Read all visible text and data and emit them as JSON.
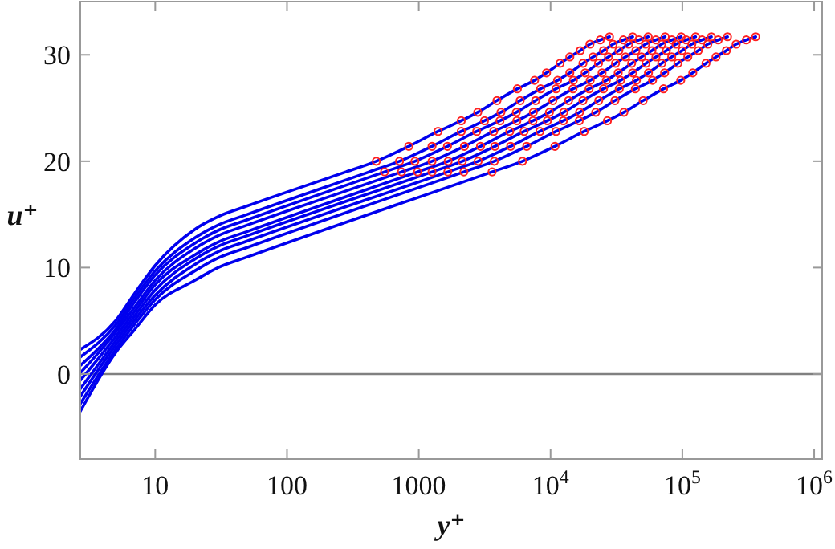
{
  "chart_data": {
    "type": "line",
    "xlabel": "y⁺",
    "ylabel": "u⁺",
    "log": "x",
    "xlim": [
      2.7,
      1150000
    ],
    "ylim": [
      -8,
      35
    ],
    "xticks": [
      10,
      100,
      1000,
      {
        "value": 10000,
        "label": "10$^{4}$"
      },
      {
        "value": 100000,
        "label": "10$^{5}$"
      },
      {
        "value": 1000000,
        "label": "10$^{6}$"
      }
    ],
    "yticks": [
      0,
      10,
      20,
      30
    ],
    "grid": false,
    "ref_lines": [
      {
        "axis": "y",
        "value": 0,
        "color": "#808080"
      }
    ],
    "series": [
      {
        "color": "#0000ee",
        "x": [
          2.7,
          5,
          7,
          10,
          20,
          30,
          50,
          280,
          476,
          840,
          1400,
          2100,
          2800,
          3920,
          5600,
          7560,
          9320,
          11800,
          14000,
          16800,
          19900,
          23800,
          28000
        ],
        "values": [
          2.3,
          5.0,
          7.6,
          10.2,
          13.6,
          14.8,
          15.8,
          19.0,
          20.0,
          21.4,
          22.8,
          23.8,
          24.6,
          25.7,
          26.8,
          27.6,
          28.3,
          29.2,
          29.8,
          30.4,
          31.0,
          31.4,
          31.7
        ]
      },
      {
        "color": "#0000ee",
        "x": [
          2.7,
          5,
          7,
          10,
          20,
          30,
          50,
          420,
          714,
          1260,
          2100,
          3150,
          4200,
          5880,
          8400,
          11300,
          14000,
          17600,
          21000,
          25200,
          29800,
          35700,
          42000
        ],
        "values": [
          1.6,
          4.6,
          7.2,
          9.7,
          12.8,
          14.0,
          15.0,
          19.0,
          20.0,
          21.4,
          22.8,
          23.8,
          24.6,
          25.7,
          26.8,
          27.6,
          28.3,
          29.2,
          29.8,
          30.4,
          31.0,
          31.4,
          31.7
        ]
      },
      {
        "color": "#0000ee",
        "x": [
          2.7,
          5,
          7,
          10,
          20,
          30,
          50,
          550,
          935,
          1650,
          2750,
          4130,
          5500,
          7700,
          11000,
          14900,
          18300,
          23100,
          27500,
          33000,
          39100,
          46800,
          55000
        ],
        "values": [
          0.8,
          4.2,
          6.8,
          9.3,
          12.3,
          13.5,
          14.5,
          19.0,
          20.0,
          21.4,
          22.8,
          23.8,
          24.6,
          25.7,
          26.8,
          27.6,
          28.3,
          29.2,
          29.8,
          30.4,
          31.0,
          31.4,
          31.7
        ]
      },
      {
        "color": "#0000ee",
        "x": [
          2.7,
          5,
          7,
          10,
          20,
          30,
          50,
          740,
          1260,
          2220,
          3700,
          5550,
          7400,
          10400,
          14800,
          20000,
          24600,
          31100,
          37000,
          44400,
          52500,
          62900,
          74000
        ],
        "values": [
          0.1,
          3.9,
          6.3,
          8.8,
          11.8,
          13.0,
          14.0,
          19.0,
          20.0,
          21.4,
          22.8,
          23.8,
          24.6,
          25.7,
          26.8,
          27.6,
          28.3,
          29.2,
          29.8,
          30.4,
          31.0,
          31.4,
          31.7
        ]
      },
      {
        "color": "#0000ee",
        "x": [
          2.7,
          5,
          7,
          10,
          20,
          30,
          50,
          980,
          1670,
          2940,
          4900,
          7350,
          9800,
          13700,
          19600,
          26500,
          32600,
          41200,
          49000,
          58800,
          69600,
          83300,
          98000
        ],
        "values": [
          -0.6,
          3.5,
          5.9,
          8.4,
          11.2,
          12.4,
          13.4,
          19.0,
          20.0,
          21.4,
          22.8,
          23.8,
          24.6,
          25.7,
          26.8,
          27.6,
          28.3,
          29.2,
          29.8,
          30.4,
          31.0,
          31.4,
          31.7
        ]
      },
      {
        "color": "#0000ee",
        "x": [
          2.7,
          5,
          7,
          10,
          20,
          30,
          50,
          1260,
          2140,
          3780,
          6300,
          9450,
          12600,
          17600,
          25200,
          34000,
          42000,
          52900,
          63000,
          75600,
          89500,
          107000,
          126000
        ],
        "values": [
          -1.4,
          3.1,
          5.5,
          7.9,
          10.8,
          12.0,
          13.0,
          19.0,
          20.0,
          21.4,
          22.8,
          23.8,
          24.6,
          25.7,
          26.8,
          27.6,
          28.3,
          29.2,
          29.8,
          30.4,
          31.0,
          31.4,
          31.7
        ]
      },
      {
        "color": "#0000ee",
        "x": [
          2.7,
          5,
          7,
          10,
          20,
          30,
          50,
          1660,
          2820,
          4980,
          8300,
          12500,
          16600,
          23200,
          33200,
          44800,
          55300,
          69700,
          83000,
          99600,
          118000,
          141000,
          166000
        ],
        "values": [
          -2.1,
          2.7,
          5.1,
          7.4,
          10.3,
          11.5,
          12.5,
          19.0,
          20.0,
          21.4,
          22.8,
          23.8,
          24.6,
          25.7,
          26.8,
          27.6,
          28.3,
          29.2,
          29.8,
          30.4,
          31.0,
          31.4,
          31.7
        ]
      },
      {
        "color": "#0000ee",
        "x": [
          2.7,
          5,
          7,
          10,
          20,
          30,
          50,
          2200,
          3740,
          6600,
          11000,
          16500,
          22000,
          30800,
          44000,
          59400,
          73300,
          92400,
          110000,
          132000,
          156000,
          187000,
          220000
        ],
        "values": [
          -2.8,
          2.3,
          4.7,
          7.0,
          9.7,
          10.9,
          11.9,
          19.0,
          20.0,
          21.4,
          22.8,
          23.8,
          24.6,
          25.7,
          26.8,
          27.6,
          28.3,
          29.2,
          29.8,
          30.4,
          31.0,
          31.4,
          31.7
        ]
      },
      {
        "color": "#0000ee",
        "x": [
          2.7,
          5,
          7,
          10,
          20,
          30,
          50,
          3600,
          6120,
          10800,
          18000,
          27000,
          36000,
          50400,
          72000,
          97200,
          120000,
          151000,
          180000,
          216000,
          256000,
          306000,
          360000
        ],
        "values": [
          -3.5,
          2.0,
          4.2,
          6.5,
          8.8,
          10.0,
          11.0,
          19.0,
          20.0,
          21.4,
          22.8,
          23.8,
          24.6,
          25.7,
          26.8,
          27.6,
          28.3,
          29.2,
          29.8,
          30.4,
          31.0,
          31.4,
          31.7
        ]
      },
      {
        "type": "scatter",
        "color": "#ff2020",
        "marker": "circle",
        "x": [
          476,
          840,
          1400,
          2100,
          2800,
          3920,
          5600,
          7560,
          9320,
          11800,
          14000,
          16800,
          19900,
          23800,
          28000
        ],
        "values": [
          20.0,
          21.4,
          22.8,
          23.8,
          24.6,
          25.7,
          26.8,
          27.6,
          28.3,
          29.2,
          29.8,
          30.4,
          31.0,
          31.4,
          31.7
        ]
      },
      {
        "type": "scatter",
        "color": "#ff2020",
        "marker": "circle",
        "x": [
          714,
          1260,
          2100,
          3150,
          4200,
          5880,
          8400,
          11300,
          14000,
          17600,
          21000,
          25200,
          29800,
          35700,
          42000
        ],
        "values": [
          20.0,
          21.4,
          22.8,
          23.8,
          24.6,
          25.7,
          26.8,
          27.6,
          28.3,
          29.2,
          29.8,
          30.4,
          31.0,
          31.4,
          31.7
        ]
      },
      {
        "type": "scatter",
        "color": "#ff2020",
        "marker": "circle",
        "x": [
          550,
          935,
          1650,
          2750,
          4130,
          5500,
          7700,
          11000,
          14900,
          18300,
          23100,
          27500,
          33000,
          39100,
          46800,
          55000
        ],
        "values": [
          19.0,
          20.0,
          21.4,
          22.8,
          23.8,
          24.6,
          25.7,
          26.8,
          27.6,
          28.3,
          29.2,
          29.8,
          30.4,
          31.0,
          31.4,
          31.7
        ]
      },
      {
        "type": "scatter",
        "color": "#ff2020",
        "marker": "circle",
        "x": [
          740,
          1260,
          2220,
          3700,
          5550,
          7400,
          10400,
          14800,
          20000,
          24600,
          31100,
          37000,
          44400,
          52500,
          62900,
          74000
        ],
        "values": [
          19.0,
          20.0,
          21.4,
          22.8,
          23.8,
          24.6,
          25.7,
          26.8,
          27.6,
          28.3,
          29.2,
          29.8,
          30.4,
          31.0,
          31.4,
          31.7
        ]
      },
      {
        "type": "scatter",
        "color": "#ff2020",
        "marker": "circle",
        "x": [
          980,
          1670,
          2940,
          4900,
          7350,
          9800,
          13700,
          19600,
          26500,
          32600,
          41200,
          49000,
          58800,
          69600,
          83300,
          98000
        ],
        "values": [
          19.0,
          20.0,
          21.4,
          22.8,
          23.8,
          24.6,
          25.7,
          26.8,
          27.6,
          28.3,
          29.2,
          29.8,
          30.4,
          31.0,
          31.4,
          31.7
        ]
      },
      {
        "type": "scatter",
        "color": "#ff2020",
        "marker": "circle",
        "x": [
          1260,
          2140,
          3780,
          6300,
          9450,
          12600,
          17600,
          25200,
          34000,
          42000,
          52900,
          63000,
          75600,
          89500,
          107000,
          126000
        ],
        "values": [
          19.0,
          20.0,
          21.4,
          22.8,
          23.8,
          24.6,
          25.7,
          26.8,
          27.6,
          28.3,
          29.2,
          29.8,
          30.4,
          31.0,
          31.4,
          31.7
        ]
      },
      {
        "type": "scatter",
        "color": "#ff2020",
        "marker": "circle",
        "x": [
          1660,
          2820,
          4980,
          8300,
          12500,
          16600,
          23200,
          33200,
          44800,
          55300,
          69700,
          83000,
          99600,
          118000,
          141000,
          166000
        ],
        "values": [
          19.0,
          20.0,
          21.4,
          22.8,
          23.8,
          24.6,
          25.7,
          26.8,
          27.6,
          28.3,
          29.2,
          29.8,
          30.4,
          31.0,
          31.4,
          31.7
        ]
      },
      {
        "type": "scatter",
        "color": "#ff2020",
        "marker": "circle",
        "x": [
          2200,
          3740,
          6600,
          11000,
          16500,
          22000,
          30800,
          44000,
          59400,
          73300,
          92400,
          110000,
          132000,
          156000,
          187000,
          220000
        ],
        "values": [
          19.0,
          20.0,
          21.4,
          22.8,
          23.8,
          24.6,
          25.7,
          26.8,
          27.6,
          28.3,
          29.2,
          29.8,
          30.4,
          31.0,
          31.4,
          31.7
        ]
      },
      {
        "type": "scatter",
        "color": "#ff2020",
        "marker": "circle",
        "x": [
          3600,
          6120,
          10800,
          18000,
          27000,
          36000,
          50400,
          72000,
          97200,
          120000,
          151000,
          180000,
          216000,
          256000,
          306000,
          360000
        ],
        "values": [
          19.0,
          20.0,
          21.4,
          22.8,
          23.8,
          24.6,
          25.7,
          26.8,
          27.6,
          28.3,
          29.2,
          29.8,
          30.4,
          31.0,
          31.4,
          31.7
        ]
      }
    ]
  }
}
